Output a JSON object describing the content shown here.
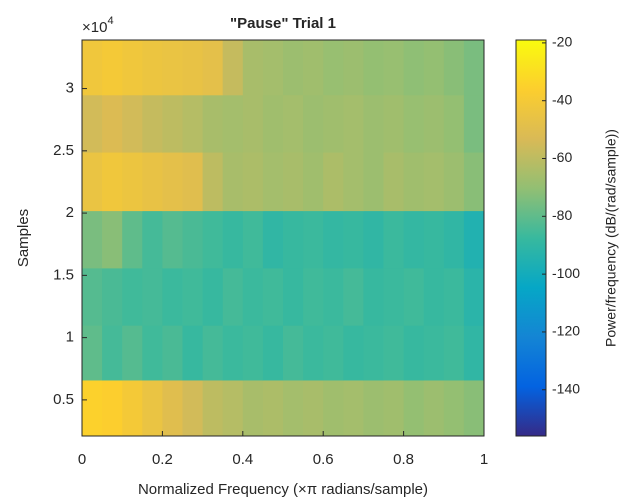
{
  "chart_data": {
    "type": "heatmap",
    "title": "\"Pause\" Trial 1",
    "xlabel": "Normalized Frequency (×π radians/sample)",
    "ylabel": "Samples",
    "y_multiplier": {
      "base": "×10",
      "exponent": "4"
    },
    "colorbar_label": "Power/frequency (dB/(rad/sample))",
    "colormap": [
      "#352a87",
      "#0363e1",
      "#1485d4",
      "#06a7c6",
      "#38b99e",
      "#92bf73",
      "#d9ba56",
      "#fcce2e",
      "#f9fb0e"
    ],
    "xlim": [
      0,
      1
    ],
    "xticks": [
      0,
      0.2,
      0.4,
      0.6,
      0.8,
      1
    ],
    "ylim": [
      0.21,
      3.39
    ],
    "yticks": [
      0.5,
      1,
      1.5,
      2,
      2.5,
      3
    ],
    "clim": [
      -156,
      -19
    ],
    "cticks": [
      -140,
      -120,
      -100,
      -80,
      -60,
      -40,
      -20
    ],
    "x_edges": [
      0,
      0.05,
      0.1,
      0.15,
      0.2,
      0.25,
      0.3,
      0.35,
      0.4,
      0.45,
      0.5,
      0.55,
      0.6,
      0.65,
      0.7,
      0.75,
      0.8,
      0.85,
      0.9,
      0.95,
      1
    ],
    "y_edges": [
      0.21,
      0.66,
      1.1,
      1.56,
      2.02,
      2.49,
      2.95,
      3.39
    ],
    "z": [
      [
        -35,
        -36,
        -40,
        -45,
        -50,
        -55,
        -60,
        -62,
        -65,
        -64,
        -66,
        -65,
        -67,
        -66,
        -68,
        -67,
        -70,
        -68,
        -70,
        -72
      ],
      [
        -80,
        -85,
        -82,
        -86,
        -84,
        -88,
        -85,
        -87,
        -86,
        -88,
        -85,
        -87,
        -86,
        -88,
        -87,
        -86,
        -88,
        -87,
        -86,
        -90
      ],
      [
        -82,
        -84,
        -86,
        -85,
        -87,
        -86,
        -88,
        -85,
        -87,
        -86,
        -88,
        -86,
        -87,
        -85,
        -88,
        -87,
        -86,
        -88,
        -87,
        -92
      ],
      [
        -75,
        -72,
        -80,
        -85,
        -82,
        -84,
        -86,
        -88,
        -86,
        -90,
        -88,
        -87,
        -89,
        -88,
        -90,
        -87,
        -89,
        -88,
        -90,
        -95
      ],
      [
        -45,
        -42,
        -44,
        -46,
        -48,
        -50,
        -60,
        -65,
        -64,
        -66,
        -65,
        -67,
        -64,
        -66,
        -68,
        -65,
        -67,
        -66,
        -68,
        -72
      ],
      [
        -55,
        -52,
        -55,
        -58,
        -60,
        -62,
        -65,
        -66,
        -65,
        -67,
        -66,
        -68,
        -67,
        -66,
        -68,
        -67,
        -69,
        -68,
        -70,
        -75
      ],
      [
        -42,
        -40,
        -42,
        -44,
        -45,
        -46,
        -48,
        -58,
        -65,
        -66,
        -68,
        -67,
        -69,
        -68,
        -70,
        -69,
        -71,
        -70,
        -72,
        -75
      ]
    ]
  }
}
